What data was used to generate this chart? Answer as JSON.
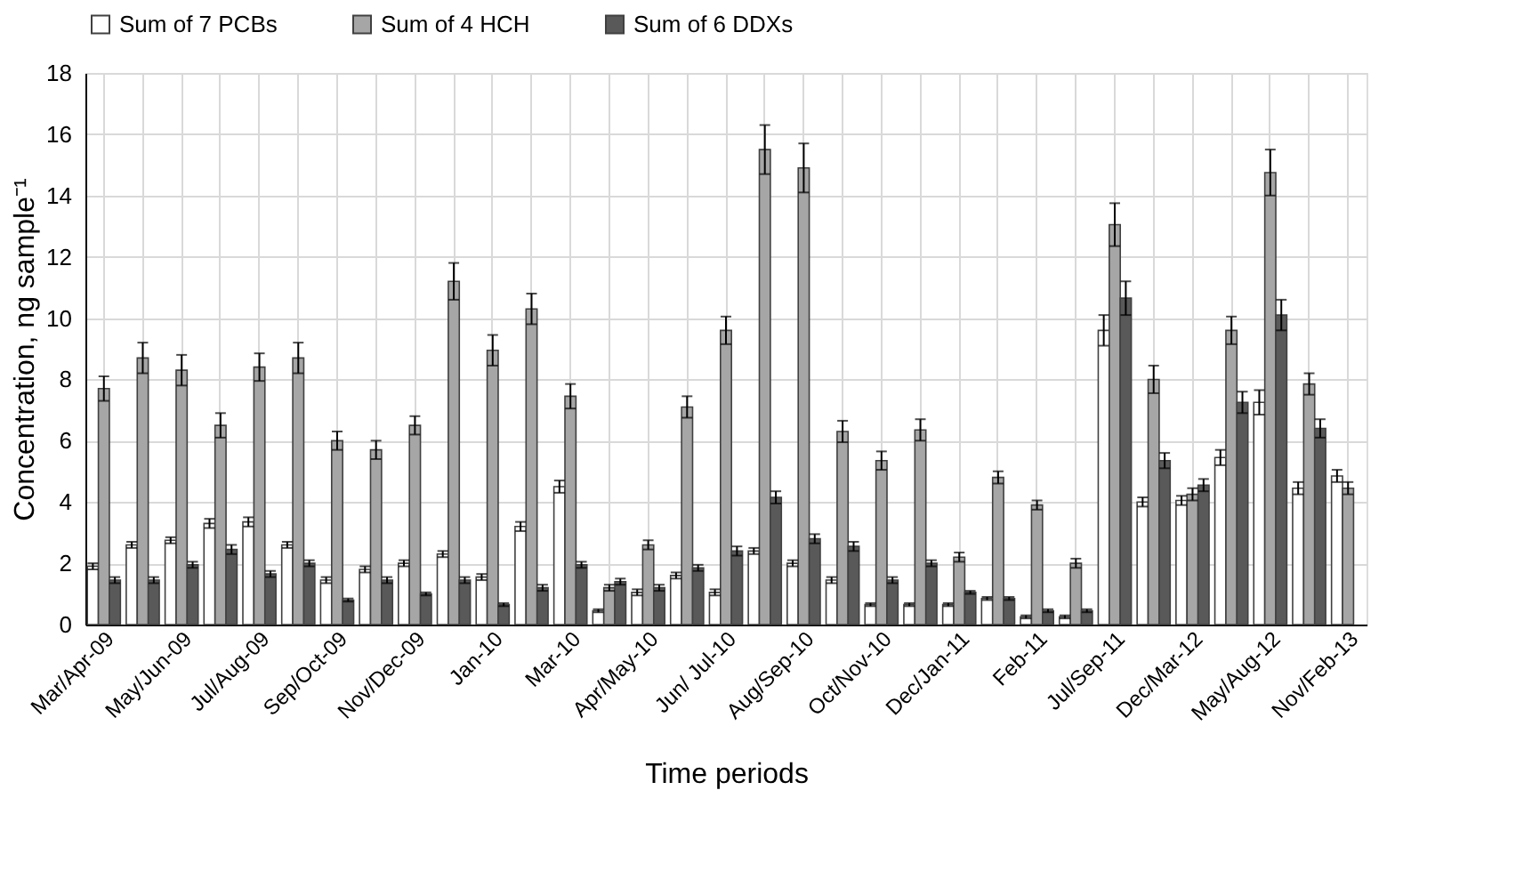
{
  "chart_data": {
    "type": "bar",
    "xlabel": "Time periods",
    "ylabel": "Concentration, ng sample⁻¹",
    "categories": [
      "Mar/Apr-09",
      null,
      "May/Jun-09",
      null,
      "Jul/Aug-09",
      null,
      "Sep/Oct-09",
      null,
      "Nov/Dec-09",
      null,
      "Jan-10",
      null,
      "Mar-10",
      null,
      "Apr/May-10",
      null,
      "Jun/ Jul-10",
      null,
      "Aug/Sep-10",
      null,
      "Oct/Nov-10",
      null,
      "Dec/Jan-11",
      null,
      "Feb-11",
      null,
      "Jul/Sep-11",
      null,
      "Dec/Mar-12",
      null,
      "May/Aug-12",
      null,
      "Nov/Feb-13"
    ],
    "series": [
      {
        "name": "Sum of 7 PCBs",
        "color": "#ffffff",
        "values": [
          1.9,
          2.6,
          2.75,
          3.3,
          3.35,
          2.6,
          1.45,
          1.8,
          2.0,
          2.3,
          1.55,
          3.2,
          4.5,
          0.45,
          1.05,
          1.6,
          1.05,
          2.4,
          2.0,
          1.45,
          0.65,
          0.65,
          0.65,
          0.85,
          0.25,
          0.25,
          9.6,
          4.0,
          4.05,
          5.45,
          7.25,
          4.45,
          4.85
        ],
        "errors": [
          0.1,
          0.1,
          0.1,
          0.15,
          0.15,
          0.1,
          0.1,
          0.1,
          0.1,
          0.1,
          0.1,
          0.15,
          0.2,
          0.05,
          0.1,
          0.1,
          0.1,
          0.1,
          0.1,
          0.1,
          0.05,
          0.05,
          0.05,
          0.05,
          0.05,
          0.05,
          0.5,
          0.15,
          0.15,
          0.25,
          0.4,
          0.2,
          0.2
        ]
      },
      {
        "name": "Sum of 4 HCH",
        "color": "#a6a6a6",
        "values": [
          7.7,
          8.7,
          8.3,
          6.5,
          8.4,
          8.7,
          6.0,
          5.7,
          6.5,
          11.2,
          8.95,
          10.3,
          7.45,
          1.2,
          2.6,
          7.1,
          9.6,
          15.5,
          14.9,
          6.3,
          5.35,
          6.35,
          2.2,
          4.8,
          3.9,
          2.0,
          13.05,
          8.0,
          4.25,
          9.6,
          14.75,
          7.85,
          4.45
        ],
        "errors": [
          0.4,
          0.5,
          0.5,
          0.4,
          0.45,
          0.5,
          0.3,
          0.3,
          0.3,
          0.6,
          0.5,
          0.5,
          0.4,
          0.1,
          0.15,
          0.35,
          0.45,
          0.8,
          0.8,
          0.35,
          0.3,
          0.35,
          0.15,
          0.2,
          0.15,
          0.15,
          0.7,
          0.45,
          0.2,
          0.45,
          0.75,
          0.35,
          0.2
        ]
      },
      {
        "name": "Sum of 6 DDXs",
        "color": "#595959",
        "values": [
          1.45,
          1.45,
          1.95,
          2.45,
          1.65,
          2.0,
          0.8,
          1.45,
          1.0,
          1.45,
          0.65,
          1.2,
          1.95,
          1.4,
          1.2,
          1.85,
          2.4,
          4.15,
          2.8,
          2.55,
          1.45,
          2.0,
          1.05,
          0.85,
          0.45,
          0.45,
          10.65,
          5.35,
          4.55,
          7.25,
          10.1,
          6.4,
          null
        ],
        "errors": [
          0.1,
          0.1,
          0.1,
          0.15,
          0.1,
          0.1,
          0.05,
          0.1,
          0.05,
          0.1,
          0.05,
          0.1,
          0.1,
          0.1,
          0.1,
          0.1,
          0.15,
          0.2,
          0.15,
          0.15,
          0.1,
          0.1,
          0.05,
          0.05,
          0.05,
          0.05,
          0.55,
          0.25,
          0.2,
          0.35,
          0.5,
          0.3,
          null
        ]
      }
    ],
    "ylim": [
      0,
      18
    ],
    "yticks": [
      0,
      2,
      4,
      6,
      8,
      10,
      12,
      14,
      16,
      18
    ],
    "grid": true,
    "legend": "top"
  }
}
